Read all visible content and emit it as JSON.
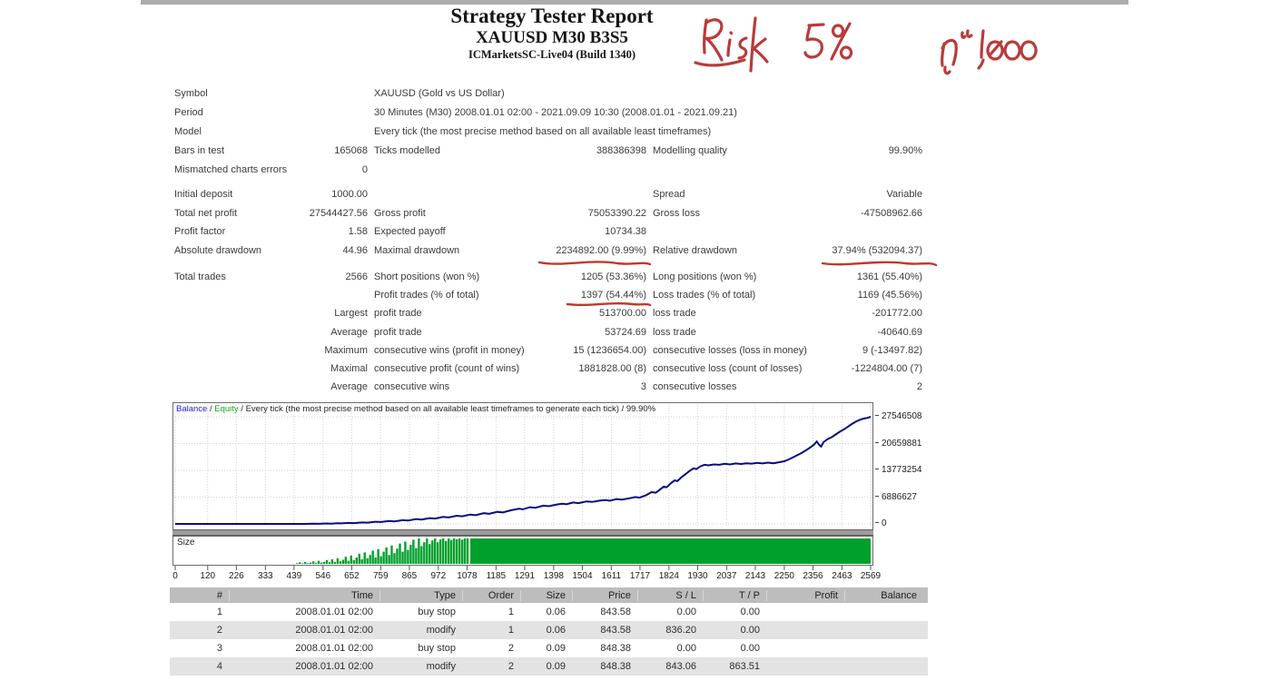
{
  "header": {
    "title": "Strategy Tester Report",
    "symbol_line": "XAUUSD M30 B3S5",
    "server_line": "ICMarketsSC-Live04 (Build 1340)"
  },
  "annotations": {
    "risk_text": "Risk 5 %",
    "capital_text": "ŋᵘ 1,000",
    "ink_color": "#b83b3b"
  },
  "stats": {
    "sections": [
      {
        "rows": [
          {
            "l1": "Symbol",
            "v1": "",
            "l2": "XAUUSD (Gold vs US Dollar)",
            "v2": "",
            "l3": "",
            "v3": ""
          },
          {
            "l1": "Period",
            "v1": "",
            "l2": "30 Minutes (M30) 2008.01.01 02:00 - 2021.09.09 10:30 (2008.01.01 - 2021.09.21)",
            "v2": "",
            "l3": "",
            "v3": ""
          },
          {
            "l1": "Model",
            "v1": "",
            "l2": "Every tick (the most precise method based on all available least timeframes)",
            "v2": "",
            "l3": "",
            "v3": ""
          },
          {
            "l1": "Bars in test",
            "v1": "165068",
            "l2": "Ticks modelled",
            "v2": "388386398",
            "l3": "Modelling quality",
            "v3": "99.90%"
          },
          {
            "l1": "Mismatched charts errors",
            "v1": "0",
            "l2": "",
            "v2": "",
            "l3": "",
            "v3": ""
          }
        ]
      },
      {
        "rows": [
          {
            "l1": "Initial deposit",
            "v1": "1000.00",
            "l2": "",
            "v2": "",
            "l3": "Spread",
            "v3": "Variable"
          },
          {
            "l1": "Total net profit",
            "v1": "27544427.56",
            "l2": "Gross profit",
            "v2": "75053390.22",
            "l3": "Gross loss",
            "v3": "-47508962.66"
          },
          {
            "l1": "Profit factor",
            "v1": "1.58",
            "l2": "Expected payoff",
            "v2": "10734.38",
            "l3": "",
            "v3": ""
          },
          {
            "l1": "Absolute drawdown",
            "v1": "44.96",
            "l2": "Maximal drawdown",
            "v2": "2234892.00 (9.99%)",
            "l3": "Relative drawdown",
            "v3": "37.94% (532094.37)"
          }
        ]
      },
      {
        "rows": [
          {
            "l1": "Total trades",
            "v1": "2566",
            "l2": "Short positions (won %)",
            "v2": "1205 (53.36%)",
            "l3": "Long positions (won %)",
            "v3": "1361 (55.40%)"
          },
          {
            "l1": "",
            "v1": "",
            "l2": "Profit trades (% of total)",
            "v2": "1397 (54.44%)",
            "l3": "Loss trades (% of total)",
            "v3": "1169 (45.56%)"
          },
          {
            "l1": "",
            "v1": "Largest",
            "l2": "profit trade",
            "v2": "513700.00",
            "l3": "loss trade",
            "v3": "-201772.00"
          },
          {
            "l1": "",
            "v1": "Average",
            "l2": "profit trade",
            "v2": "53724.69",
            "l3": "loss trade",
            "v3": "-40640.69"
          },
          {
            "l1": "",
            "v1": "Maximum",
            "l2": "consecutive wins (profit in money)",
            "v2": "15 (1236654.00)",
            "l3": "consecutive losses (loss in money)",
            "v3": "9 (-13497.82)"
          },
          {
            "l1": "",
            "v1": "Maximal",
            "l2": "consecutive profit (count of wins)",
            "v2": "1881828.00 (8)",
            "l3": "consecutive loss (count of losses)",
            "v3": "-1224804.00 (7)"
          },
          {
            "l1": "",
            "v1": "Average",
            "l2": "consecutive wins",
            "v2": "3",
            "l3": "consecutive losses",
            "v3": "2"
          }
        ]
      }
    ]
  },
  "chart_data": {
    "type": "line",
    "legend": {
      "balance": "Balance",
      "sep1": " / ",
      "equity": "Equity",
      "rest": " / Every tick (the most precise method based on all available least timeframes to generate each tick) / 99.90%"
    },
    "legend_colors": {
      "balance": "#2222cc",
      "equity": "#1fa31f"
    },
    "x_max": 2569,
    "y_max": 27546508,
    "x_ticks": [
      0,
      120,
      226,
      333,
      439,
      546,
      652,
      759,
      865,
      972,
      1078,
      1185,
      1291,
      1398,
      1504,
      1611,
      1717,
      1824,
      1930,
      2037,
      2143,
      2250,
      2356,
      2463,
      2569
    ],
    "y_ticks": [
      27546508,
      20659881,
      13773254,
      6886627,
      0
    ],
    "series": [
      {
        "name": "Balance",
        "color": "#0b0b7e",
        "points": [
          [
            0,
            1000
          ],
          [
            180,
            1000
          ],
          [
            320,
            1000
          ],
          [
            420,
            1500
          ],
          [
            480,
            8000
          ],
          [
            510,
            60000
          ],
          [
            530,
            30000
          ],
          [
            560,
            120000
          ],
          [
            575,
            70000
          ],
          [
            600,
            180000
          ],
          [
            615,
            130000
          ],
          [
            640,
            260000
          ],
          [
            660,
            200000
          ],
          [
            690,
            380000
          ],
          [
            710,
            330000
          ],
          [
            740,
            560000
          ],
          [
            760,
            480000
          ],
          [
            790,
            740000
          ],
          [
            810,
            660000
          ],
          [
            840,
            950000
          ],
          [
            860,
            860000
          ],
          [
            890,
            1250000
          ],
          [
            910,
            1120000
          ],
          [
            940,
            1500000
          ],
          [
            960,
            1380000
          ],
          [
            990,
            1800000
          ],
          [
            1010,
            1650000
          ],
          [
            1040,
            2100000
          ],
          [
            1060,
            1950000
          ],
          [
            1090,
            2400000
          ],
          [
            1110,
            2250000
          ],
          [
            1140,
            2750000
          ],
          [
            1160,
            2600000
          ],
          [
            1190,
            3100000
          ],
          [
            1210,
            2950000
          ],
          [
            1240,
            3500000
          ],
          [
            1270,
            3900000
          ],
          [
            1285,
            3750000
          ],
          [
            1310,
            4300000
          ],
          [
            1330,
            4150000
          ],
          [
            1360,
            4700000
          ],
          [
            1380,
            4550000
          ],
          [
            1410,
            5000000
          ],
          [
            1430,
            5200000
          ],
          [
            1445,
            5050000
          ],
          [
            1470,
            5500000
          ],
          [
            1490,
            5350000
          ],
          [
            1520,
            5800000
          ],
          [
            1540,
            5650000
          ],
          [
            1570,
            6000000
          ],
          [
            1590,
            6150000
          ],
          [
            1605,
            5950000
          ],
          [
            1630,
            6400000
          ],
          [
            1650,
            6250000
          ],
          [
            1680,
            6600000
          ],
          [
            1700,
            6900000
          ],
          [
            1715,
            6750000
          ],
          [
            1740,
            7400000
          ],
          [
            1760,
            8200000
          ],
          [
            1775,
            8000000
          ],
          [
            1790,
            8800000
          ],
          [
            1805,
            9600000
          ],
          [
            1815,
            9400000
          ],
          [
            1830,
            10400000
          ],
          [
            1845,
            11200000
          ],
          [
            1855,
            11000000
          ],
          [
            1870,
            12000000
          ],
          [
            1885,
            12800000
          ],
          [
            1900,
            13600000
          ],
          [
            1915,
            14300000
          ],
          [
            1925,
            14100000
          ],
          [
            1940,
            14800000
          ],
          [
            1955,
            15200000
          ],
          [
            1970,
            15050000
          ],
          [
            1990,
            15300000
          ],
          [
            2010,
            15200000
          ],
          [
            2030,
            15450000
          ],
          [
            2050,
            15300000
          ],
          [
            2070,
            15550000
          ],
          [
            2090,
            15400000
          ],
          [
            2110,
            15600000
          ],
          [
            2130,
            15500000
          ],
          [
            2150,
            15700000
          ],
          [
            2170,
            15550000
          ],
          [
            2190,
            15750000
          ],
          [
            2210,
            15600000
          ],
          [
            2230,
            15850000
          ],
          [
            2250,
            16100000
          ],
          [
            2270,
            16700000
          ],
          [
            2290,
            17400000
          ],
          [
            2310,
            18100000
          ],
          [
            2330,
            18900000
          ],
          [
            2345,
            19600000
          ],
          [
            2360,
            20400000
          ],
          [
            2370,
            21200000
          ],
          [
            2378,
            20400000
          ],
          [
            2386,
            19900000
          ],
          [
            2395,
            21000000
          ],
          [
            2410,
            21800000
          ],
          [
            2425,
            22300000
          ],
          [
            2440,
            23000000
          ],
          [
            2455,
            23700000
          ],
          [
            2470,
            24300000
          ],
          [
            2485,
            25000000
          ],
          [
            2500,
            25700000
          ],
          [
            2515,
            26300000
          ],
          [
            2530,
            26800000
          ],
          [
            2545,
            27100000
          ],
          [
            2557,
            27250000
          ],
          [
            2569,
            27546508
          ]
        ]
      }
    ],
    "size_histogram": {
      "label": "Size",
      "color": "#00a02c",
      "bar_start": 450,
      "bar_step": 10,
      "heights": [
        0.03,
        0.06,
        0.02,
        0.08,
        0.03,
        0.05,
        0.1,
        0.04,
        0.12,
        0.05,
        0.08,
        0.15,
        0.06,
        0.18,
        0.08,
        0.22,
        0.1,
        0.16,
        0.28,
        0.12,
        0.33,
        0.15,
        0.25,
        0.4,
        0.18,
        0.45,
        0.22,
        0.35,
        0.52,
        0.25,
        0.58,
        0.3,
        0.48,
        0.65,
        0.35,
        0.72,
        0.42,
        0.6,
        0.8,
        0.48,
        0.88,
        0.55,
        0.75,
        0.95,
        0.62,
        1.0,
        0.7,
        0.85,
        1.0,
        0.78,
        0.92,
        1.0,
        0.85,
        0.96,
        1.0,
        0.9,
        1.0,
        0.94,
        1.0,
        0.97,
        1.0,
        0.95,
        1.0,
        1.0
      ],
      "solid_from": 1090
    }
  },
  "trades": {
    "columns": [
      "#",
      "Time",
      "Type",
      "Order",
      "Size",
      "Price",
      "S / L",
      "T / P",
      "Profit",
      "Balance"
    ],
    "rows": [
      [
        "1",
        "2008.01.01 02:00",
        "buy stop",
        "1",
        "0.06",
        "843.58",
        "0.00",
        "0.00",
        "",
        ""
      ],
      [
        "2",
        "2008.01.01 02:00",
        "modify",
        "1",
        "0.06",
        "843.58",
        "836.20",
        "0.00",
        "",
        ""
      ],
      [
        "3",
        "2008.01.01 02:00",
        "buy stop",
        "2",
        "0.09",
        "848.38",
        "0.00",
        "0.00",
        "",
        ""
      ],
      [
        "4",
        "2008.01.01 02:00",
        "modify",
        "2",
        "0.09",
        "848.38",
        "843.06",
        "863.51",
        "",
        ""
      ]
    ]
  }
}
